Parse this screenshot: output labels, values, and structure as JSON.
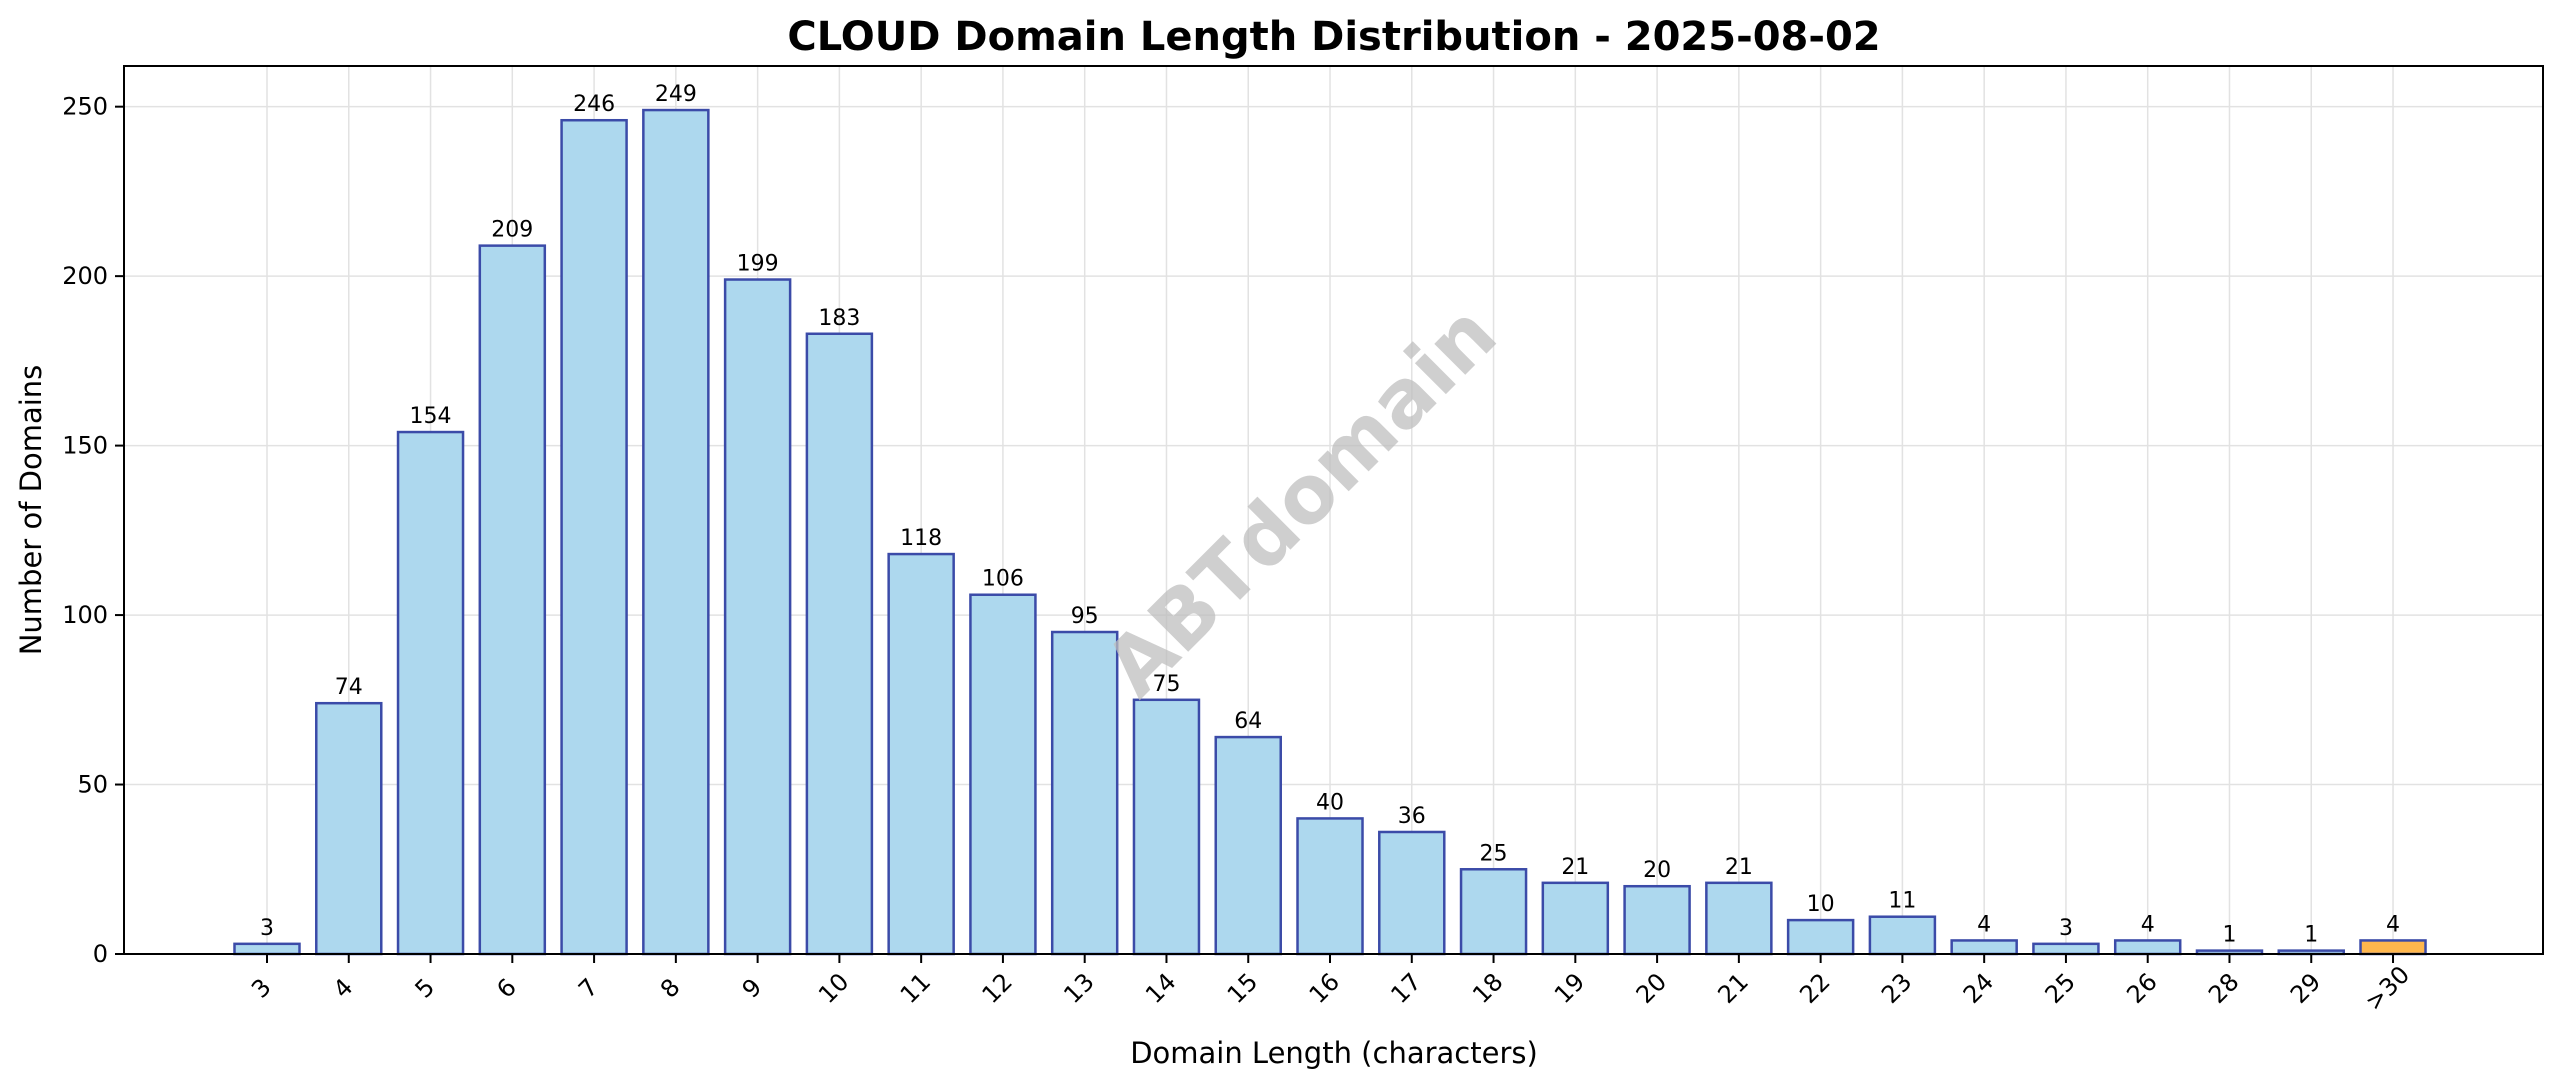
{
  "chart_data": {
    "type": "bar",
    "title": "CLOUD Domain Length Distribution - 2025-08-02",
    "xlabel": "Domain Length (characters)",
    "ylabel": "Number of Domains",
    "categories": [
      "3",
      "4",
      "5",
      "6",
      "7",
      "8",
      "9",
      "10",
      "11",
      "12",
      "13",
      "14",
      "15",
      "16",
      "17",
      "18",
      "19",
      "20",
      "21",
      "22",
      "23",
      "24",
      "25",
      "26",
      "28",
      "29",
      ">30"
    ],
    "values": [
      3,
      74,
      154,
      209,
      246,
      249,
      199,
      183,
      118,
      106,
      95,
      75,
      64,
      40,
      36,
      25,
      21,
      20,
      21,
      10,
      11,
      4,
      3,
      4,
      1,
      1,
      4
    ],
    "ylim": [
      0,
      262
    ],
    "yticks": [
      0,
      50,
      100,
      150,
      200,
      250
    ],
    "grid": true,
    "colors": {
      "bar_fill": "#add8ee",
      "bar_edge": "#3b4ba8",
      "highlight_fill": "#ffb74d",
      "highlight_edge": "#3b4ba8",
      "grid": "#e2e2e2"
    },
    "highlight_category": ">30",
    "watermark": "ABTdomain"
  }
}
